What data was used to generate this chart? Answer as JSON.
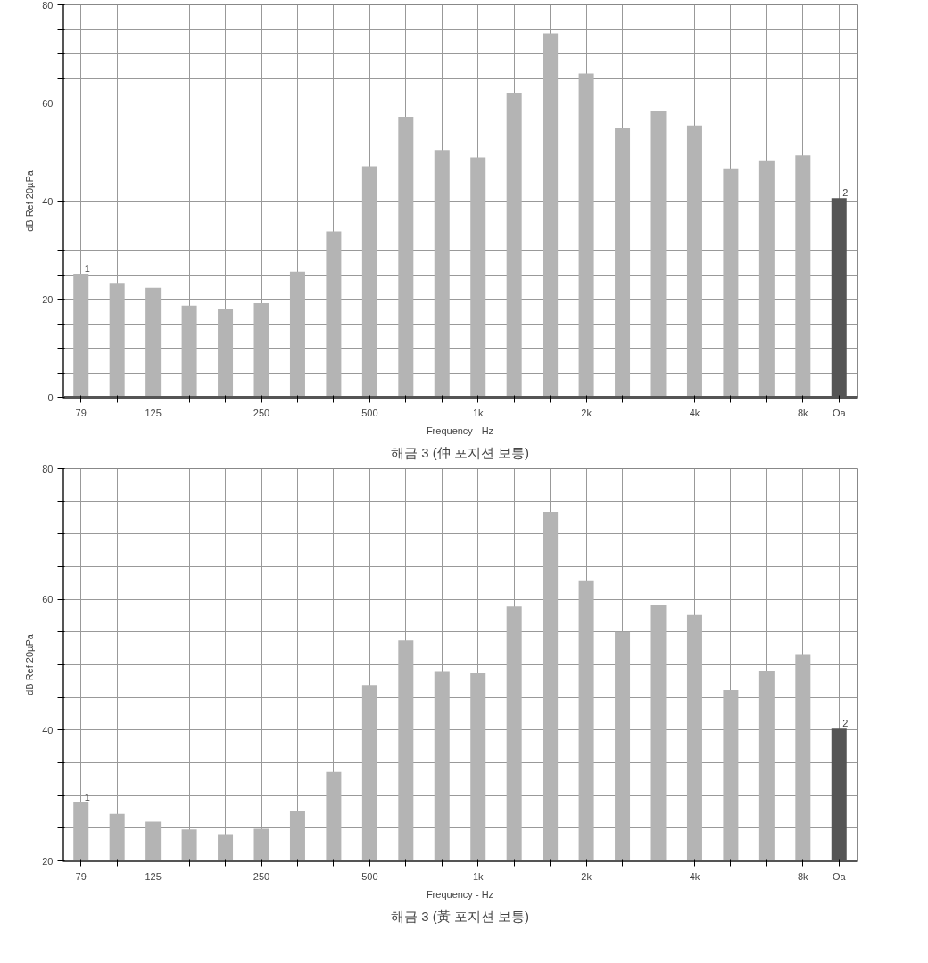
{
  "chart_data": [
    {
      "type": "bar",
      "title": "해금 3 (仲 포지션 보통)",
      "xlabel": "Frequency - Hz",
      "ylabel": "dB Ref 20µPa",
      "categories": [
        "79",
        null,
        "125",
        null,
        null,
        "250",
        null,
        null,
        "500",
        null,
        null,
        "1k",
        null,
        null,
        "2k",
        null,
        null,
        "4k",
        null,
        null,
        "8k",
        "Oa"
      ],
      "values": [
        25.2,
        23.3,
        22.3,
        18.7,
        18.0,
        19.2,
        25.6,
        33.8,
        47.1,
        57.2,
        50.4,
        48.9,
        62.1,
        74.2,
        66.0,
        54.8,
        58.4,
        55.4,
        46.7,
        48.3,
        49.3,
        40.6
      ],
      "colors": [
        "#b4b4b4",
        "#b4b4b4",
        "#b4b4b4",
        "#b4b4b4",
        "#b4b4b4",
        "#b4b4b4",
        "#b4b4b4",
        "#b4b4b4",
        "#b4b4b4",
        "#b4b4b4",
        "#b4b4b4",
        "#b4b4b4",
        "#b4b4b4",
        "#b4b4b4",
        "#b4b4b4",
        "#b4b4b4",
        "#b4b4b4",
        "#b4b4b4",
        "#b4b4b4",
        "#b4b4b4",
        "#b4b4b4",
        "#555555"
      ],
      "ylim": [
        0,
        80
      ],
      "yticks": [
        0,
        {
          "value": 5,
          "label": null
        },
        {
          "value": 10,
          "label": null
        },
        {
          "value": 15,
          "label": null
        },
        20,
        {
          "value": 25,
          "label": null
        },
        {
          "value": 30,
          "label": null
        },
        {
          "value": 35,
          "label": null
        },
        40,
        {
          "value": 45,
          "label": null
        },
        {
          "value": 50,
          "label": null
        },
        {
          "value": 55,
          "label": null
        },
        60,
        {
          "value": 65,
          "label": null
        },
        {
          "value": 70,
          "label": null
        },
        {
          "value": 75,
          "label": null
        },
        80
      ],
      "annotations": [
        {
          "text": "1",
          "x": "79",
          "y": 25.2
        },
        {
          "text": "2",
          "x": "Oa",
          "y": 40.6
        }
      ],
      "grid": true
    },
    {
      "type": "bar",
      "title": "해금 3 (黃 포지션 보통)",
      "xlabel": "Frequency - Hz",
      "ylabel": "dB Ref 20µPa",
      "categories": [
        "79",
        null,
        "125",
        null,
        null,
        "250",
        null,
        null,
        "500",
        null,
        null,
        "1k",
        null,
        null,
        "2k",
        null,
        null,
        "4k",
        null,
        null,
        "8k",
        "Oa"
      ],
      "values": [
        29.0,
        27.2,
        26.0,
        24.8,
        24.1,
        24.9,
        27.6,
        33.6,
        46.9,
        53.7,
        48.9,
        48.7,
        58.9,
        73.4,
        62.8,
        55.0,
        59.1,
        57.6,
        46.1,
        49.0,
        51.5,
        40.2
      ],
      "colors": [
        "#b4b4b4",
        "#b4b4b4",
        "#b4b4b4",
        "#b4b4b4",
        "#b4b4b4",
        "#b4b4b4",
        "#b4b4b4",
        "#b4b4b4",
        "#b4b4b4",
        "#b4b4b4",
        "#b4b4b4",
        "#b4b4b4",
        "#b4b4b4",
        "#b4b4b4",
        "#b4b4b4",
        "#b4b4b4",
        "#b4b4b4",
        "#b4b4b4",
        "#b4b4b4",
        "#b4b4b4",
        "#b4b4b4",
        "#555555"
      ],
      "ylim": [
        20,
        80
      ],
      "yticks": [
        20,
        {
          "value": 25,
          "label": null
        },
        {
          "value": 30,
          "label": null
        },
        {
          "value": 35,
          "label": null
        },
        40,
        {
          "value": 45,
          "label": null
        },
        {
          "value": 50,
          "label": null
        },
        {
          "value": 55,
          "label": null
        },
        60,
        {
          "value": 65,
          "label": null
        },
        {
          "value": 70,
          "label": null
        },
        {
          "value": 75,
          "label": null
        },
        80
      ],
      "annotations": [
        {
          "text": "1",
          "x": "79",
          "y": 29.0
        },
        {
          "text": "2",
          "x": "Oa",
          "y": 40.2
        }
      ],
      "grid": true
    }
  ]
}
